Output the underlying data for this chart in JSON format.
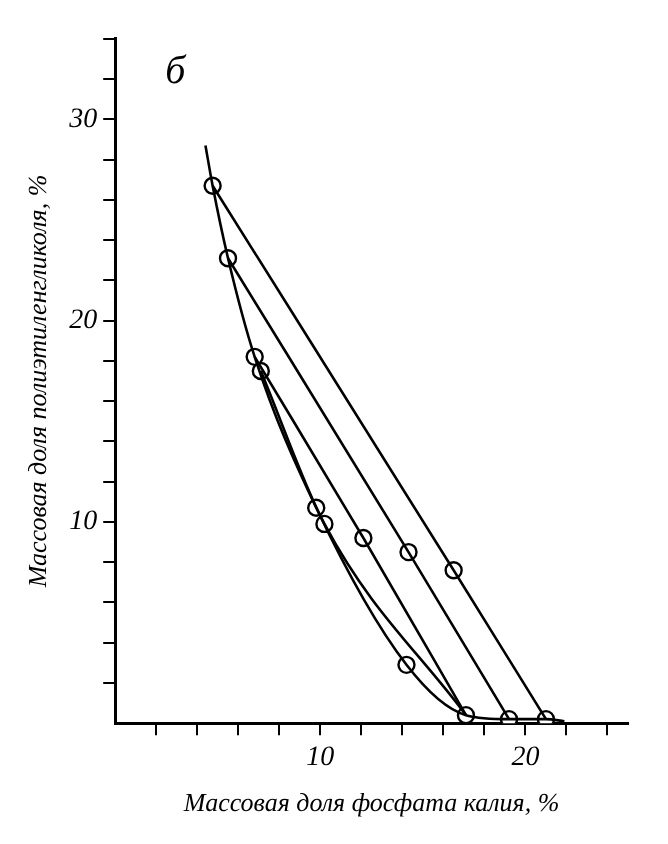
{
  "chart_data": {
    "type": "line",
    "xlabel": "Массовая доля фосфата калия, %",
    "ylabel": "Массовая доля полиэтиленгликоля, %",
    "annotations": [
      "б"
    ],
    "xlim": [
      0,
      25
    ],
    "ylim": [
      0,
      34
    ],
    "xticks": [
      {
        "value": 2,
        "label": null
      },
      {
        "value": 4,
        "label": null
      },
      {
        "value": 6,
        "label": null
      },
      {
        "value": 8,
        "label": null
      },
      10,
      {
        "value": 12,
        "label": null
      },
      {
        "value": 14,
        "label": null
      },
      {
        "value": 16,
        "label": null
      },
      {
        "value": 18,
        "label": null
      },
      20,
      {
        "value": 22,
        "label": null
      },
      {
        "value": 24,
        "label": null
      }
    ],
    "yticks": [
      {
        "value": 2,
        "label": null
      },
      {
        "value": 4,
        "label": null
      },
      {
        "value": 6,
        "label": null
      },
      {
        "value": 8,
        "label": null
      },
      10,
      {
        "value": 12,
        "label": null
      },
      {
        "value": 14,
        "label": null
      },
      {
        "value": 16,
        "label": null
      },
      {
        "value": 18,
        "label": null
      },
      20,
      {
        "value": 22,
        "label": null
      },
      {
        "value": 24,
        "label": null
      },
      {
        "value": 26,
        "label": null
      },
      {
        "value": 28,
        "label": null
      },
      30,
      {
        "value": 32,
        "label": null
      },
      {
        "value": 34,
        "label": null
      }
    ],
    "grid": false,
    "legend": false,
    "marker": "none",
    "series": [
      {
        "color": "#000000",
        "x": [
          4.4,
          4.75,
          5.5,
          6.8,
          9.8,
          14.2,
          17.1,
          19.2,
          21.0,
          21.9
        ],
        "values": [
          28.7,
          26.7,
          23.1,
          18.2,
          10.7,
          2.9,
          0.4,
          0.2,
          0.2,
          0.1
        ]
      },
      {
        "color": "#000000",
        "x": [
          4.75,
          16.5,
          21.0
        ],
        "values": [
          26.7,
          7.6,
          0.2
        ]
      },
      {
        "color": "#000000",
        "x": [
          5.5,
          14.3,
          19.2
        ],
        "values": [
          23.1,
          8.5,
          0.2
        ]
      },
      {
        "color": "#000000",
        "x": [
          6.8,
          12.1,
          17.1
        ],
        "values": [
          18.2,
          9.2,
          0.4
        ]
      },
      {
        "color": "#000000",
        "x": [
          7.1,
          10.2,
          17.1
        ],
        "values": [
          17.5,
          9.9,
          0.4
        ]
      },
      {
        "color": "#000000",
        "type": "scatter",
        "marker": "circle",
        "x": [
          4.75,
          5.5,
          6.8,
          7.1,
          9.8,
          10.2,
          12.1,
          14.2,
          14.3,
          16.5,
          17.1,
          19.2,
          21.0
        ],
        "values": [
          26.7,
          23.1,
          18.2,
          17.5,
          10.7,
          9.9,
          9.2,
          2.9,
          8.5,
          7.6,
          0.4,
          0.2,
          0.2
        ]
      }
    ]
  }
}
